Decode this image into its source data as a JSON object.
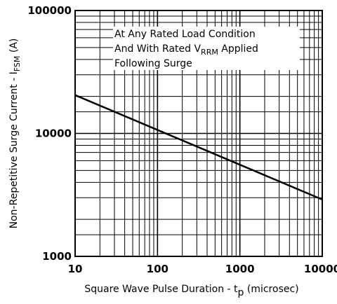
{
  "chart_data": {
    "type": "line",
    "x_scale": "log",
    "y_scale": "log",
    "xlim": [
      10,
      10000
    ],
    "ylim": [
      1000,
      100000
    ],
    "grid": true,
    "xlabel": {
      "main": "Square Wave Pulse Duration - t",
      "sub": "p",
      "tail": " (microsec)"
    },
    "ylabel": {
      "main": "Non-Repetitive Surge Current - I",
      "sub": "FSM",
      "tail": " (A)"
    },
    "x_tick_labels": [
      "10",
      "100",
      "1000",
      "10000"
    ],
    "y_tick_labels": [
      "1000",
      "10000",
      "100000"
    ],
    "annotation": {
      "line1": "At Any Rated Load Condition",
      "line2_pre": "And With Rated V",
      "line2_sub": "RRM",
      "line2_post": " Applied",
      "line3": "Following Surge"
    },
    "series": [
      {
        "x": [
          10,
          10000
        ],
        "y": [
          20500,
          2900
        ]
      }
    ]
  }
}
